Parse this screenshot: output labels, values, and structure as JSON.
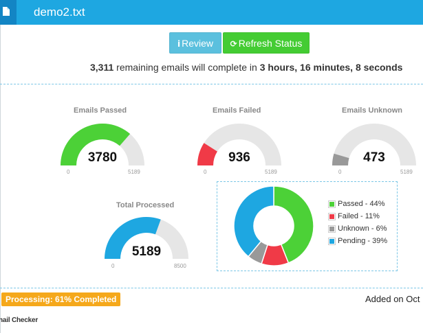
{
  "window": {
    "file_icon": "file-icon",
    "title": "demo2.txt"
  },
  "toolbar": {
    "review_icon": "info-icon",
    "review_label": "Review",
    "refresh_icon": "refresh-icon",
    "refresh_label": "Refresh Status"
  },
  "status": {
    "remaining_count": "3,311",
    "remaining_text": " remaining emails will complete in ",
    "eta": "3 hours, 16 minutes, 8 seconds"
  },
  "colors": {
    "passed": "#4cd137",
    "failed": "#f03a47",
    "unknown": "#999999",
    "pending": "#1ea7e1",
    "track": "#e6e6e6",
    "header": "#1ea7e1",
    "badge": "#f5a81b"
  },
  "chart_data": [
    {
      "type": "gauge",
      "title": "Emails Passed",
      "value": 3780,
      "min": 0,
      "max": 5189,
      "value_label": "3780",
      "min_label": "0",
      "max_label": "5189",
      "color": "#4cd137"
    },
    {
      "type": "gauge",
      "title": "Emails Failed",
      "value": 936,
      "min": 0,
      "max": 5189,
      "value_label": "936",
      "min_label": "0",
      "max_label": "5189",
      "color": "#f03a47"
    },
    {
      "type": "gauge",
      "title": "Emails Unknown",
      "value": 473,
      "min": 0,
      "max": 5189,
      "value_label": "473",
      "min_label": "0",
      "max_label": "5189",
      "color": "#999999"
    },
    {
      "type": "gauge",
      "title": "Total Processed",
      "value": 5189,
      "min": 0,
      "max": 8500,
      "value_label": "5189",
      "min_label": "0",
      "max_label": "8500",
      "color": "#1ea7e1"
    },
    {
      "type": "pie",
      "donut": true,
      "categories": [
        "Passed",
        "Failed",
        "Unknown",
        "Pending"
      ],
      "values": [
        44,
        11,
        6,
        39
      ],
      "labels": [
        "Passed - 44%",
        "Failed - 11%",
        "Unknown - 6%",
        "Pending - 39%"
      ],
      "colors": [
        "#4cd137",
        "#f03a47",
        "#999999",
        "#1ea7e1"
      ],
      "legend": "right"
    }
  ],
  "footer": {
    "progress_label": "Processing: 61% Completed",
    "added_on": "Added on Oct",
    "app_name": "nail Checker"
  }
}
